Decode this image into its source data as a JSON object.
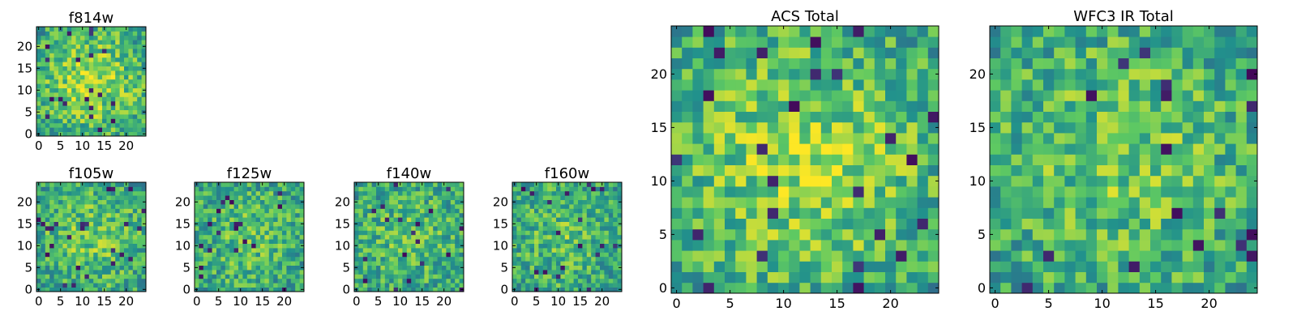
{
  "figure": {
    "colormap": [
      "#440154",
      "#3b528b",
      "#21918c",
      "#5ec962",
      "#fde725"
    ]
  },
  "chart_data": [
    {
      "type": "heatmap",
      "title": "f814w",
      "grid_size": 25,
      "xlim": [
        -0.5,
        24.5
      ],
      "ylim": [
        -0.5,
        24.5
      ],
      "xticks": [
        0,
        5,
        10,
        15,
        20
      ],
      "yticks": [
        0,
        5,
        10,
        15,
        20
      ],
      "seed": 11,
      "center_boost": 0.3,
      "grid": false
    },
    {
      "type": "heatmap",
      "title": "f105w",
      "grid_size": 25,
      "xlim": [
        -0.5,
        24.5
      ],
      "ylim": [
        -0.5,
        24.5
      ],
      "xticks": [
        0,
        5,
        10,
        15,
        20
      ],
      "yticks": [
        0,
        5,
        10,
        15,
        20
      ],
      "seed": 23,
      "center_boost": 0.2,
      "grid": false
    },
    {
      "type": "heatmap",
      "title": "f125w",
      "grid_size": 25,
      "xlim": [
        -0.5,
        24.5
      ],
      "ylim": [
        -0.5,
        24.5
      ],
      "xticks": [
        0,
        5,
        10,
        15,
        20
      ],
      "yticks": [
        0,
        5,
        10,
        15,
        20
      ],
      "seed": 37,
      "center_boost": 0.15,
      "grid": false
    },
    {
      "type": "heatmap",
      "title": "f140w",
      "grid_size": 25,
      "xlim": [
        -0.5,
        24.5
      ],
      "ylim": [
        -0.5,
        24.5
      ],
      "xticks": [
        0,
        5,
        10,
        15,
        20
      ],
      "yticks": [
        0,
        5,
        10,
        15,
        20
      ],
      "seed": 41,
      "center_boost": 0.15,
      "grid": false
    },
    {
      "type": "heatmap",
      "title": "f160w",
      "grid_size": 25,
      "xlim": [
        -0.5,
        24.5
      ],
      "ylim": [
        -0.5,
        24.5
      ],
      "xticks": [
        0,
        5,
        10,
        15,
        20
      ],
      "yticks": [
        0,
        5,
        10,
        15,
        20
      ],
      "seed": 53,
      "center_boost": 0.15,
      "grid": false
    },
    {
      "type": "heatmap",
      "title": "ACS Total",
      "grid_size": 25,
      "xlim": [
        -0.5,
        24.5
      ],
      "ylim": [
        -0.5,
        24.5
      ],
      "xticks": [
        0,
        5,
        10,
        15,
        20
      ],
      "yticks": [
        0,
        5,
        10,
        15,
        20
      ],
      "seed": 67,
      "center_boost": 0.3,
      "grid": false
    },
    {
      "type": "heatmap",
      "title": "WFC3 IR Total",
      "grid_size": 25,
      "xlim": [
        -0.5,
        24.5
      ],
      "ylim": [
        -0.5,
        24.5
      ],
      "xticks": [
        0,
        5,
        10,
        15,
        20
      ],
      "yticks": [
        0,
        5,
        10,
        15,
        20
      ],
      "seed": 79,
      "center_boost": 0.2,
      "grid": false
    }
  ]
}
